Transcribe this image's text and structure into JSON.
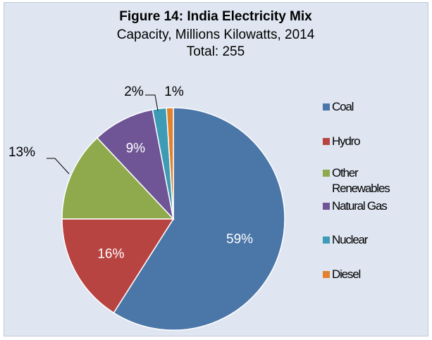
{
  "chart_data": {
    "type": "pie",
    "title": "Figure 14: India Electricity Mix",
    "subtitle": "Capacity, Millions Kilowatts, 2014",
    "total_label": "Total: 255",
    "legend_position": "right",
    "slices": [
      {
        "name": "Coal",
        "value": 59,
        "label": "59%",
        "color": "#4a76a8"
      },
      {
        "name": "Hydro",
        "value": 16,
        "label": "16%",
        "color": "#b84442"
      },
      {
        "name": "Other Renewables",
        "value": 13,
        "label": "13%",
        "color": "#8eaa4c"
      },
      {
        "name": "Natural Gas",
        "value": 9,
        "label": "9%",
        "color": "#6f5595"
      },
      {
        "name": "Nuclear",
        "value": 2,
        "label": "2%",
        "color": "#3d9bb5"
      },
      {
        "name": "Diesel",
        "value": 1,
        "label": "1%",
        "color": "#e1822f"
      }
    ]
  }
}
